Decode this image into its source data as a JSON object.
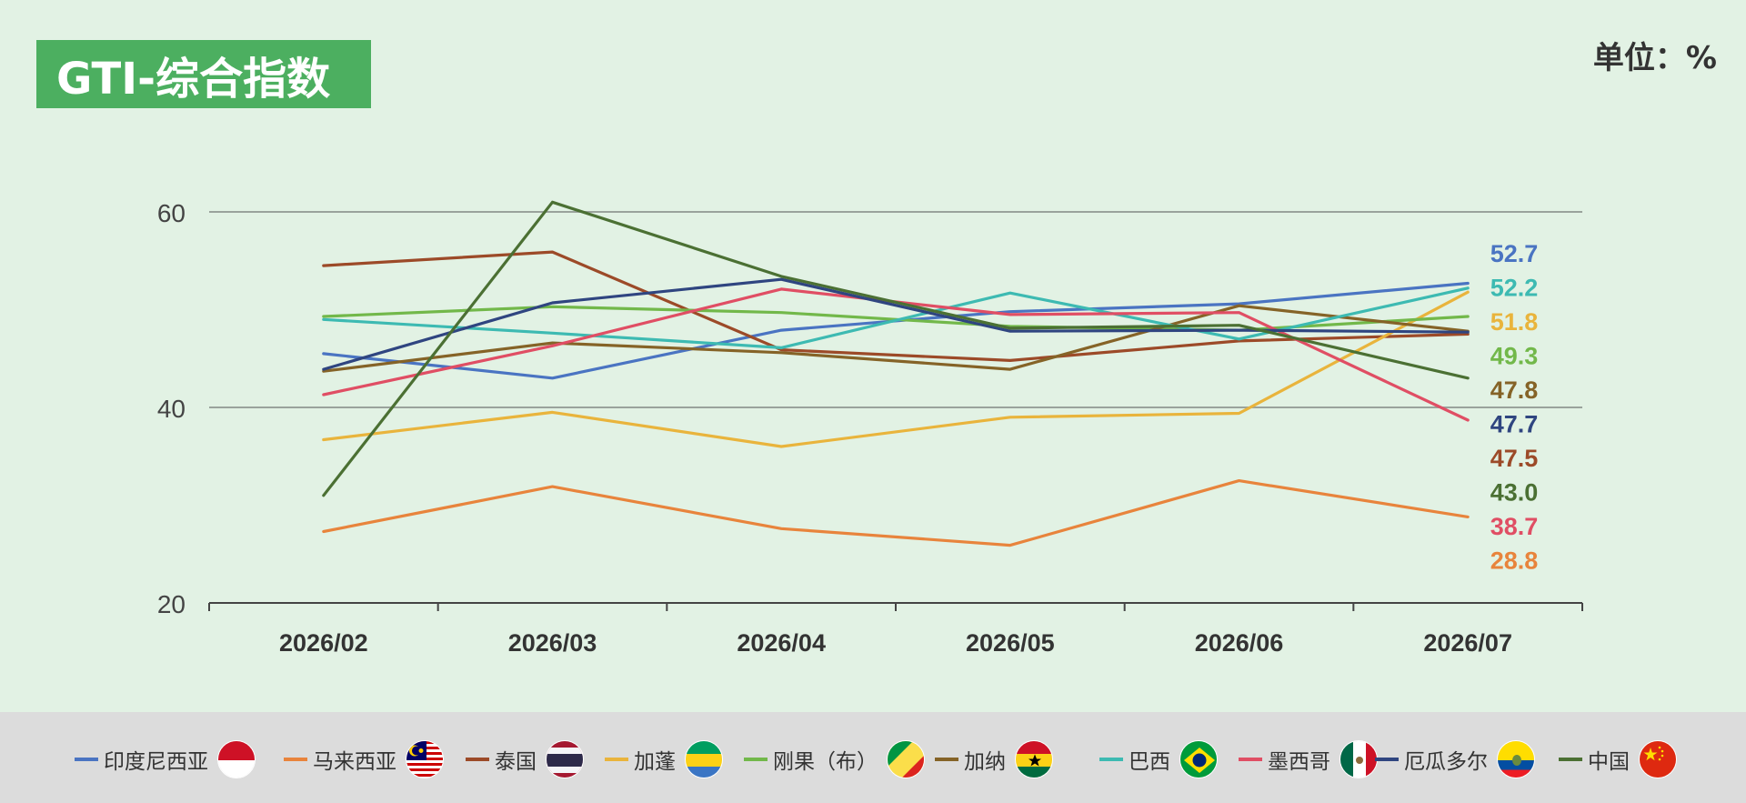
{
  "header": {
    "title": "GTI-综合指数",
    "unit": "单位：%"
  },
  "chart_data": {
    "type": "line",
    "title": "GTI-综合指数",
    "unit": "单位：%",
    "categories": [
      "2026/02",
      "2026/03",
      "2026/04",
      "2026/05",
      "2026/06",
      "2026/07"
    ],
    "ylim": [
      20,
      60
    ],
    "yticks": [
      20,
      40,
      60
    ],
    "grid": true,
    "legend_position": "bottom",
    "series": [
      {
        "name": "印度尼西亚",
        "color": "#4a74c2",
        "values": [
          45.5,
          43.0,
          47.9,
          49.8,
          50.6,
          52.7
        ],
        "label": "52.7",
        "flag": "indonesia"
      },
      {
        "name": "马来西亚",
        "color": "#e8843c",
        "values": [
          27.3,
          31.9,
          27.6,
          25.9,
          32.5,
          28.8
        ],
        "label": "28.8",
        "flag": "malaysia"
      },
      {
        "name": "泰国",
        "color": "#9c4a28",
        "values": [
          54.5,
          55.9,
          45.9,
          44.8,
          46.8,
          47.5
        ],
        "label": "47.5",
        "flag": "thailand"
      },
      {
        "name": "加蓬",
        "color": "#e9b43c",
        "values": [
          36.7,
          39.5,
          36.0,
          39.0,
          39.4,
          51.8
        ],
        "label": "51.8",
        "flag": "gabon"
      },
      {
        "name": "刚果（布）",
        "color": "#72b84a",
        "values": [
          49.3,
          50.3,
          49.7,
          48.3,
          47.9,
          49.3
        ],
        "label": "49.3",
        "flag": "congo"
      },
      {
        "name": "加纳",
        "color": "#856327",
        "values": [
          43.7,
          46.6,
          45.6,
          43.9,
          50.4,
          47.8
        ],
        "label": "47.8",
        "flag": "ghana"
      },
      {
        "name": "巴西",
        "color": "#3dbab2",
        "values": [
          49.0,
          47.6,
          46.1,
          51.7,
          47.0,
          52.2
        ],
        "label": "52.2",
        "flag": "brazil"
      },
      {
        "name": "墨西哥",
        "color": "#e04e64",
        "values": [
          41.3,
          46.3,
          52.1,
          49.5,
          49.7,
          38.7
        ],
        "label": "38.7",
        "flag": "mexico"
      },
      {
        "name": "厄瓜多尔",
        "color": "#2f4580",
        "values": [
          43.9,
          50.7,
          53.1,
          47.8,
          47.9,
          47.7
        ],
        "label": "47.7",
        "flag": "ecuador"
      },
      {
        "name": "中国",
        "color": "#4b7033",
        "values": [
          31.0,
          61.0,
          53.4,
          48.1,
          48.4,
          43.0
        ],
        "label": "43.0",
        "flag": "china"
      }
    ]
  }
}
